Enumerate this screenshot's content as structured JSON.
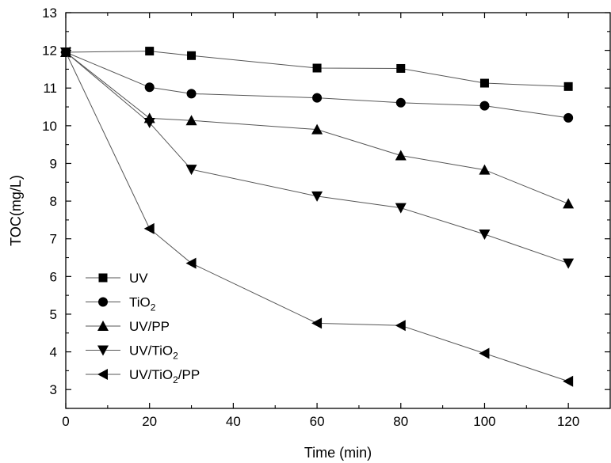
{
  "chart_data": {
    "type": "line",
    "title": "",
    "xlabel": "Time (min)",
    "ylabel": "TOC(mg/L)",
    "xlim": [
      0,
      130
    ],
    "ylim": [
      2.5,
      13
    ],
    "x_ticks": [
      0,
      20,
      40,
      60,
      80,
      100,
      120
    ],
    "y_ticks": [
      3,
      4,
      5,
      6,
      7,
      8,
      9,
      10,
      11,
      12,
      13
    ],
    "grid": false,
    "legend_position": "bottom-left",
    "x": [
      0,
      20,
      30,
      60,
      80,
      100,
      120
    ],
    "series": [
      {
        "name": "UV",
        "marker": "square",
        "color": "#000000",
        "values": [
          11.95,
          11.98,
          11.86,
          11.53,
          11.52,
          11.13,
          11.04
        ]
      },
      {
        "name": "TiO2",
        "marker": "circle",
        "color": "#000000",
        "values": [
          11.95,
          11.02,
          10.85,
          10.74,
          10.61,
          10.53,
          10.21
        ]
      },
      {
        "name": "UV/PP",
        "marker": "triangle-up",
        "color": "#000000",
        "values": [
          11.95,
          10.2,
          10.14,
          9.9,
          9.21,
          8.83,
          7.93
        ]
      },
      {
        "name": "UV/TiO2",
        "marker": "triangle-down",
        "color": "#000000",
        "values": [
          11.95,
          10.08,
          8.84,
          8.13,
          7.82,
          7.12,
          6.35
        ]
      },
      {
        "name": "UV/TiO2/PP",
        "marker": "triangle-left",
        "color": "#000000",
        "values": [
          11.95,
          7.27,
          6.35,
          4.76,
          4.7,
          3.96,
          3.22
        ]
      }
    ],
    "legend": [
      {
        "base": "UV",
        "sub": "",
        "tail": ""
      },
      {
        "base": "TiO",
        "sub": "2",
        "tail": ""
      },
      {
        "base": "UV/PP",
        "sub": "",
        "tail": ""
      },
      {
        "base": "UV/TiO",
        "sub": "2",
        "tail": ""
      },
      {
        "base": "UV/TiO",
        "sub": "2",
        "tail": "/PP"
      }
    ]
  }
}
